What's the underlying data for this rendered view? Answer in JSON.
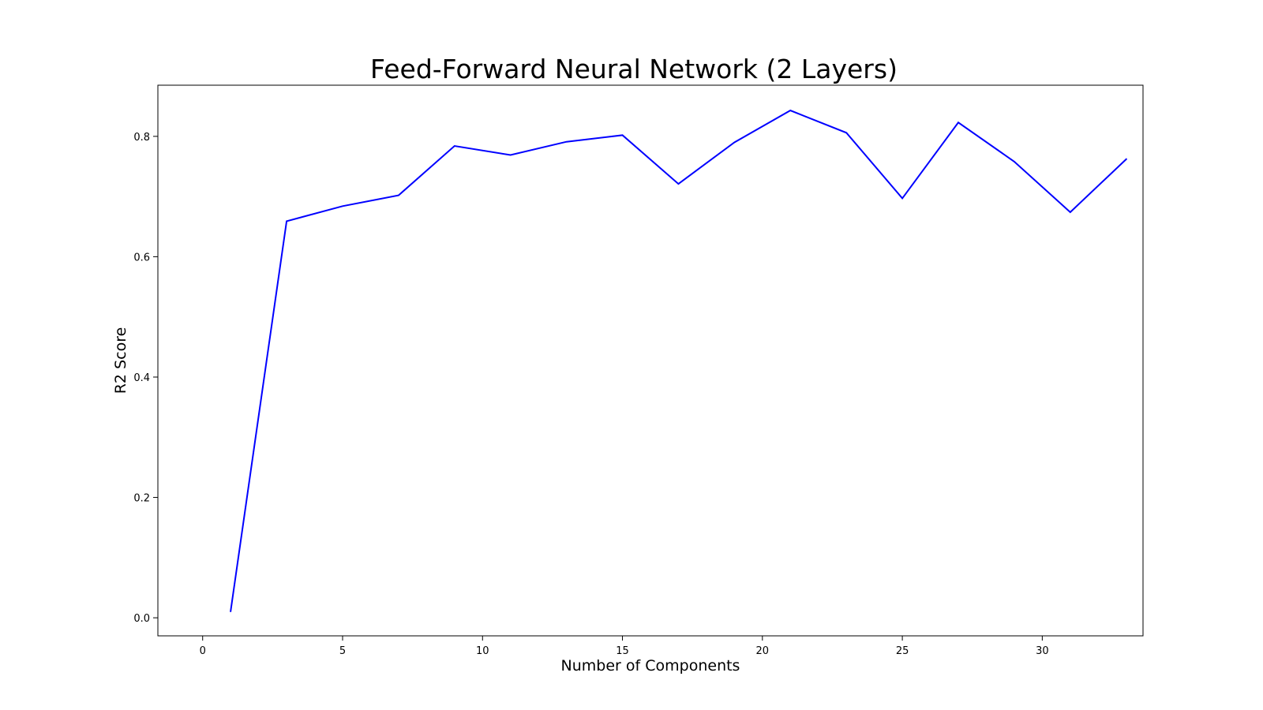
{
  "chart_data": {
    "type": "line",
    "title": "Feed-Forward Neural Network (2 Layers)",
    "xlabel": "Number of Components",
    "ylabel": "R2 Score",
    "xlim": [
      -1.6,
      33.6
    ],
    "ylim": [
      -0.03,
      0.885
    ],
    "xticks": [
      0,
      5,
      10,
      15,
      20,
      25,
      30
    ],
    "xtick_labels": [
      "0",
      "5",
      "10",
      "15",
      "20",
      "25",
      "30"
    ],
    "yticks": [
      0.0,
      0.2,
      0.4,
      0.6,
      0.8
    ],
    "ytick_labels": [
      "0.0",
      "0.2",
      "0.4",
      "0.6",
      "0.8"
    ],
    "grid": false,
    "legend": false,
    "series": [
      {
        "color": "#0000ff",
        "x": [
          1,
          3,
          5,
          7,
          9,
          11,
          13,
          15,
          17,
          19,
          21,
          23,
          25,
          27,
          29,
          31,
          33
        ],
        "y": [
          0.011,
          0.659,
          0.684,
          0.702,
          0.784,
          0.769,
          0.791,
          0.802,
          0.721,
          0.79,
          0.843,
          0.806,
          0.697,
          0.823,
          0.758,
          0.674,
          0.762
        ]
      }
    ]
  }
}
